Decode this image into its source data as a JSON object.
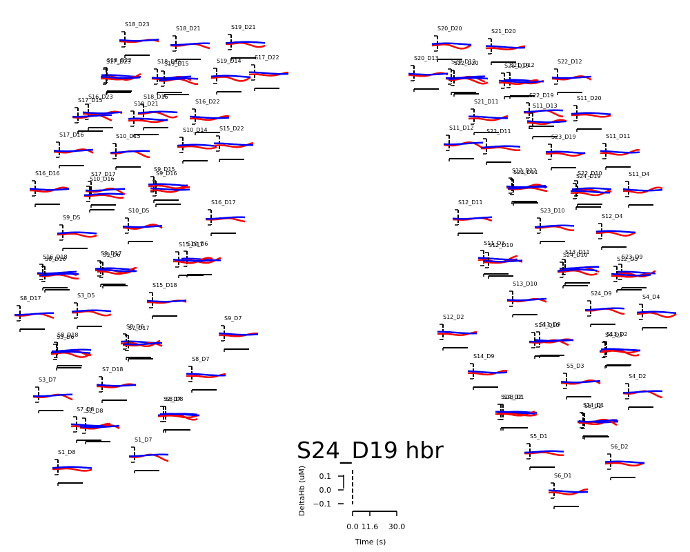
{
  "chart_data": {
    "type": "line",
    "title": "S24_D19 hbr",
    "ylabel": "DeltaHb (uM)",
    "xlabel": "Time (s)",
    "yticks": [
      "0.1",
      "0.0",
      "−0.1"
    ],
    "xticks": [
      "0.0",
      "11.6",
      "30.0"
    ],
    "ylim": [
      -0.15,
      0.15
    ],
    "xlim": [
      0,
      30
    ],
    "series_colors": {
      "hbo": "#ff0000",
      "hbr": "#0000ff"
    },
    "left_channels": [
      "S18_D23",
      "S18_D21",
      "S19_D21",
      "S18_D22",
      "S17_D23",
      "S18_D15",
      "S19_D15",
      "S19_D14",
      "S17_D22",
      "S16_D23",
      "S17_D15",
      "S18_D16",
      "S10_D21",
      "S16_D22",
      "S17_D16",
      "S10_D15",
      "S10_D14",
      "S15_D22",
      "S16_D16",
      "S17_D17",
      "S10_D16",
      "S9_D15",
      "S9_D16",
      "S10_D5",
      "S16_D17",
      "S9_D5",
      "S10_D6",
      "S15_D17",
      "S16_D18",
      "S8_D16",
      "S9_D17",
      "S9_D6",
      "S15_D18",
      "S8_D17",
      "S3_D5",
      "S8_D6",
      "S9_D7",
      "S7_D17",
      "S8_D18",
      "S3_D6",
      "S8_D7",
      "S7_D18",
      "S3_D7",
      "S2_D7",
      "S8_D8",
      "S7_D8",
      "S2_D8",
      "S1_D7",
      "S1_D8"
    ],
    "right_channels": [
      "S20_D20",
      "S21_D20",
      "S20_D13",
      "S20_D12",
      "S22_D20",
      "S21_D12",
      "S21_D19",
      "S22_D12",
      "S22_D19",
      "S11_D20",
      "S21_D11",
      "S11_D13",
      "S11_D12",
      "S22_D11",
      "S23_D19",
      "S11_D11",
      "S12_D12",
      "S23_D11",
      "S22_D10",
      "S24_D19",
      "S11_D4",
      "S12_D11",
      "S23_D10",
      "S12_D4",
      "S11_D3",
      "S12_D10",
      "S13_D11",
      "S24_D10",
      "S23_D9",
      "S12_D3",
      "S13_D10",
      "S24_D9",
      "S4_D4",
      "S12_D2",
      "S13_D9",
      "S14_D10",
      "S4_D3",
      "S13_D2",
      "S14_D9",
      "S5_D3",
      "S4_D2",
      "S13_D1",
      "S14_D2",
      "S5_D2",
      "S14_D1",
      "S5_D1",
      "S6_D2",
      "S6_D1"
    ]
  }
}
